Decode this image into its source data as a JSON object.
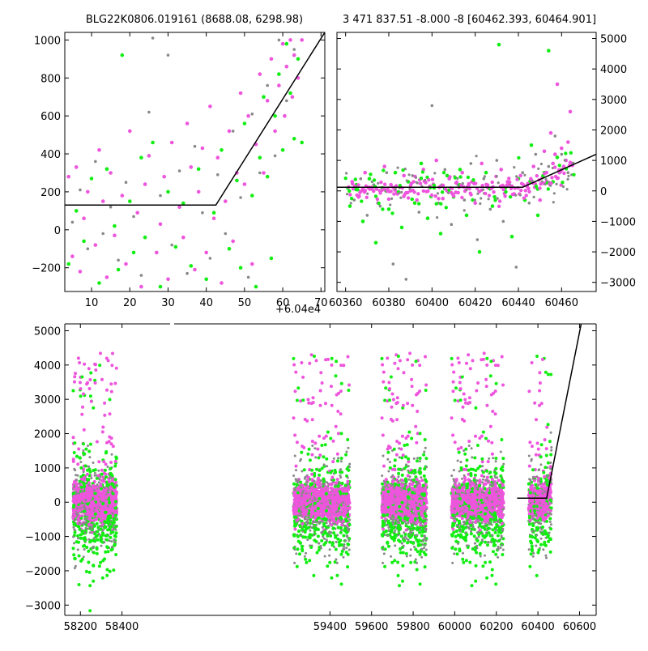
{
  "colors": {
    "background": "#ffffff",
    "series_magenta": "#ee55dd",
    "series_green": "#11ee11",
    "series_gray": "#888888",
    "model_line": "#000000",
    "axis": "#000000"
  },
  "chart_data": [
    {
      "type": "scatter",
      "title": "BLG22K0806.019161 (8688.08, 6298.98)",
      "xlabel": "",
      "ylabel": "",
      "x_offset_label": "+6.04e4",
      "xlim": [
        3,
        71
      ],
      "ylim": [
        -325,
        1040
      ],
      "x_tick_labels": [
        "10",
        "20",
        "30",
        "40",
        "50",
        "60",
        "70"
      ],
      "y_tick_labels": [
        "−200",
        "0",
        "200",
        "400",
        "600",
        "800",
        "1000"
      ],
      "y_axis_side": "left",
      "grid": false,
      "series": [
        {
          "color_key": "series_magenta",
          "points": [
            [
              4,
              280
            ],
            [
              5,
              -140
            ],
            [
              6,
              330
            ],
            [
              7,
              -220
            ],
            [
              8,
              60
            ],
            [
              9,
              200
            ],
            [
              11,
              -80
            ],
            [
              12,
              420
            ],
            [
              13,
              150
            ],
            [
              14,
              -250
            ],
            [
              15,
              300
            ],
            [
              16,
              -30
            ],
            [
              18,
              180
            ],
            [
              19,
              -180
            ],
            [
              20,
              520
            ],
            [
              22,
              90
            ],
            [
              23,
              -300
            ],
            [
              24,
              240
            ],
            [
              25,
              390
            ],
            [
              27,
              -120
            ],
            [
              28,
              30
            ],
            [
              29,
              280
            ],
            [
              30,
              -260
            ],
            [
              31,
              460
            ],
            [
              33,
              120
            ],
            [
              34,
              -40
            ],
            [
              35,
              560
            ],
            [
              36,
              330
            ],
            [
              37,
              -210
            ],
            [
              38,
              200
            ],
            [
              39,
              430
            ],
            [
              40,
              -120
            ],
            [
              41,
              650
            ],
            [
              42,
              60
            ],
            [
              43,
              380
            ],
            [
              44,
              -280
            ],
            [
              45,
              150
            ],
            [
              46,
              520
            ],
            [
              47,
              -60
            ],
            [
              48,
              300
            ],
            [
              49,
              720
            ],
            [
              50,
              240
            ],
            [
              51,
              600
            ],
            [
              52,
              -180
            ],
            [
              53,
              450
            ],
            [
              54,
              820
            ],
            [
              55,
              300
            ],
            [
              56,
              680
            ],
            [
              57,
              900
            ],
            [
              58,
              520
            ],
            [
              59,
              760
            ],
            [
              60,
              980
            ],
            [
              60.5,
              600
            ],
            [
              61,
              860
            ],
            [
              62,
              1000
            ],
            [
              62.5,
              700
            ],
            [
              63,
              920
            ],
            [
              64,
              800
            ],
            [
              65,
              1000
            ]
          ]
        },
        {
          "color_key": "series_green",
          "points": [
            [
              4,
              -180
            ],
            [
              6,
              100
            ],
            [
              8,
              -60
            ],
            [
              10,
              270
            ],
            [
              12,
              -280
            ],
            [
              14,
              320
            ],
            [
              16,
              20
            ],
            [
              17,
              -210
            ],
            [
              18,
              920
            ],
            [
              20,
              150
            ],
            [
              21,
              -120
            ],
            [
              23,
              380
            ],
            [
              24,
              -40
            ],
            [
              26,
              460
            ],
            [
              28,
              -300
            ],
            [
              30,
              200
            ],
            [
              32,
              -90
            ],
            [
              34,
              140
            ],
            [
              36,
              -190
            ],
            [
              38,
              320
            ],
            [
              40,
              -260
            ],
            [
              42,
              90
            ],
            [
              44,
              420
            ],
            [
              46,
              -100
            ],
            [
              48,
              260
            ],
            [
              49,
              -200
            ],
            [
              50,
              560
            ],
            [
              52,
              180
            ],
            [
              53,
              -300
            ],
            [
              54,
              380
            ],
            [
              55,
              700
            ],
            [
              56,
              280
            ],
            [
              57,
              -150
            ],
            [
              58,
              600
            ],
            [
              59,
              820
            ],
            [
              60,
              420
            ],
            [
              61,
              980
            ],
            [
              62,
              720
            ],
            [
              63,
              480
            ],
            [
              64,
              900
            ],
            [
              65,
              460
            ]
          ]
        },
        {
          "color_key": "series_gray",
          "points": [
            [
              5,
              40
            ],
            [
              7,
              210
            ],
            [
              9,
              -100
            ],
            [
              11,
              360
            ],
            [
              13,
              -20
            ],
            [
              15,
              120
            ],
            [
              17,
              -160
            ],
            [
              19,
              250
            ],
            [
              21,
              70
            ],
            [
              23,
              -240
            ],
            [
              25,
              620
            ],
            [
              26,
              1010
            ],
            [
              28,
              180
            ],
            [
              30,
              920
            ],
            [
              31,
              -80
            ],
            [
              33,
              310
            ],
            [
              35,
              -230
            ],
            [
              37,
              440
            ],
            [
              39,
              90
            ],
            [
              41,
              -150
            ],
            [
              43,
              290
            ],
            [
              45,
              -20
            ],
            [
              47,
              520
            ],
            [
              49,
              170
            ],
            [
              51,
              -250
            ],
            [
              52,
              610
            ],
            [
              54,
              300
            ],
            [
              56,
              760
            ],
            [
              58,
              390
            ],
            [
              59,
              1000
            ],
            [
              61,
              680
            ],
            [
              63,
              950
            ]
          ]
        }
      ],
      "model_line": [
        [
          3,
          130
        ],
        [
          42.5,
          130
        ],
        [
          71,
          1040
        ]
      ]
    },
    {
      "type": "scatter",
      "title": "3 471 837.51 -8.000 -8 [60462.393, 60464.901]",
      "xlabel": "",
      "ylabel": "",
      "xlim": [
        60356,
        60476
      ],
      "ylim": [
        -3300,
        5200
      ],
      "x_tick_labels": [
        "60360",
        "60380",
        "60400",
        "60420",
        "60440",
        "60460"
      ],
      "y_tick_labels": [
        "−3000",
        "−2000",
        "−1000",
        "0",
        "1000",
        "2000",
        "3000",
        "4000",
        "5000"
      ],
      "y_axis_side": "right",
      "grid": false,
      "series": [
        {
          "color_key": "series_magenta",
          "points": [
            [
              60363,
              300
            ],
            [
              60366,
              -200
            ],
            [
              60369,
              600
            ],
            [
              60372,
              100
            ],
            [
              60375,
              -400
            ],
            [
              60378,
              800
            ],
            [
              60381,
              200
            ],
            [
              60384,
              -100
            ],
            [
              60387,
              500
            ],
            [
              60390,
              0
            ],
            [
              60393,
              -300
            ],
            [
              60396,
              700
            ],
            [
              60399,
              150
            ],
            [
              60402,
              1000
            ],
            [
              60405,
              -250
            ],
            [
              60408,
              400
            ],
            [
              60411,
              -50
            ],
            [
              60414,
              600
            ],
            [
              60417,
              200
            ],
            [
              60420,
              -400
            ],
            [
              60423,
              900
            ],
            [
              60426,
              100
            ],
            [
              60429,
              -200
            ],
            [
              60432,
              700
            ],
            [
              60435,
              300
            ],
            [
              60438,
              -100
            ],
            [
              60441,
              500
            ],
            [
              60444,
              150
            ],
            [
              60447,
              800
            ],
            [
              60450,
              -300
            ],
            [
              60452,
              1300
            ],
            [
              60453,
              600
            ],
            [
              60455,
              1900
            ],
            [
              60456,
              900
            ],
            [
              60457,
              1200
            ],
            [
              60458,
              3500
            ],
            [
              60459,
              600
            ],
            [
              60460,
              1400
            ],
            [
              60461,
              800
            ],
            [
              60462,
              1000
            ],
            [
              60463,
              1600
            ],
            [
              60464,
              2600
            ],
            [
              60465,
              900
            ]
          ]
        },
        {
          "color_key": "series_green",
          "points": [
            [
              60362,
              -500
            ],
            [
              60365,
              200
            ],
            [
              60368,
              -1000
            ],
            [
              60371,
              400
            ],
            [
              60374,
              -1700
            ],
            [
              60377,
              100
            ],
            [
              60380,
              -600
            ],
            [
              60383,
              600
            ],
            [
              60386,
              -1200
            ],
            [
              60389,
              300
            ],
            [
              60392,
              -400
            ],
            [
              60395,
              900
            ],
            [
              60398,
              -900
            ],
            [
              60401,
              100
            ],
            [
              60404,
              -1400
            ],
            [
              60407,
              500
            ],
            [
              60410,
              -200
            ],
            [
              60413,
              700
            ],
            [
              60416,
              -800
            ],
            [
              60419,
              300
            ],
            [
              60422,
              -2000
            ],
            [
              60425,
              600
            ],
            [
              60428,
              -500
            ],
            [
              60431,
              4800
            ],
            [
              60434,
              100
            ],
            [
              60437,
              -1500
            ],
            [
              60440,
              400
            ],
            [
              60443,
              -300
            ],
            [
              60446,
              1500
            ],
            [
              60449,
              -800
            ],
            [
              60452,
              600
            ],
            [
              60454,
              4600
            ],
            [
              60456,
              300
            ],
            [
              60458,
              1100
            ],
            [
              60460,
              700
            ]
          ]
        },
        {
          "color_key": "series_gray",
          "points": [
            [
              60364,
              -300
            ],
            [
              60367,
              400
            ],
            [
              60370,
              -800
            ],
            [
              60373,
              200
            ],
            [
              60376,
              -500
            ],
            [
              60379,
              600
            ],
            [
              60382,
              -2400
            ],
            [
              60385,
              100
            ],
            [
              60388,
              -2900
            ],
            [
              60391,
              500
            ],
            [
              60394,
              -700
            ],
            [
              60397,
              300
            ],
            [
              60400,
              2800
            ],
            [
              60403,
              -400
            ],
            [
              60406,
              700
            ],
            [
              60409,
              -1100
            ],
            [
              60412,
              200
            ],
            [
              60415,
              -300
            ],
            [
              60418,
              900
            ],
            [
              60421,
              -1600
            ],
            [
              60424,
              400
            ],
            [
              60427,
              -600
            ],
            [
              60430,
              1000
            ],
            [
              60433,
              -1000
            ],
            [
              60436,
              200
            ],
            [
              60439,
              -2500
            ],
            [
              60442,
              600
            ],
            [
              60445,
              -400
            ],
            [
              60448,
              1200
            ],
            [
              60451,
              300
            ],
            [
              60454,
              800
            ],
            [
              60457,
              1800
            ],
            [
              60460,
              1200
            ],
            [
              60463,
              600
            ]
          ]
        }
      ],
      "model_line": [
        [
          60356,
          120
        ],
        [
          60442,
          120
        ],
        [
          60476,
          1200
        ]
      ]
    },
    {
      "type": "scatter",
      "title": "",
      "xlabel": "",
      "ylabel": "",
      "xlim": [
        58125,
        60680
      ],
      "ylim": [
        -3300,
        5200
      ],
      "x_tick_labels": [
        "58200",
        "58400",
        "59400",
        "59600",
        "59800",
        "60000",
        "60200",
        "60400",
        "60600"
      ],
      "y_tick_labels": [
        "−3000",
        "−2000",
        "−1000",
        "0",
        "1000",
        "2000",
        "3000",
        "4000",
        "5000"
      ],
      "y_axis_side": "left",
      "axis_break_after": 58440,
      "grid": false,
      "seasons": [
        {
          "x_from": 58165,
          "x_to": 58375
        },
        {
          "x_from": 59225,
          "x_to": 59495
        },
        {
          "x_from": 59650,
          "x_to": 59865
        },
        {
          "x_from": 59985,
          "x_to": 60235
        },
        {
          "x_from": 60355,
          "x_to": 60465
        }
      ],
      "model_line": [
        [
          60300,
          120
        ],
        [
          60442,
          120
        ],
        [
          60608,
          5200
        ]
      ]
    }
  ]
}
